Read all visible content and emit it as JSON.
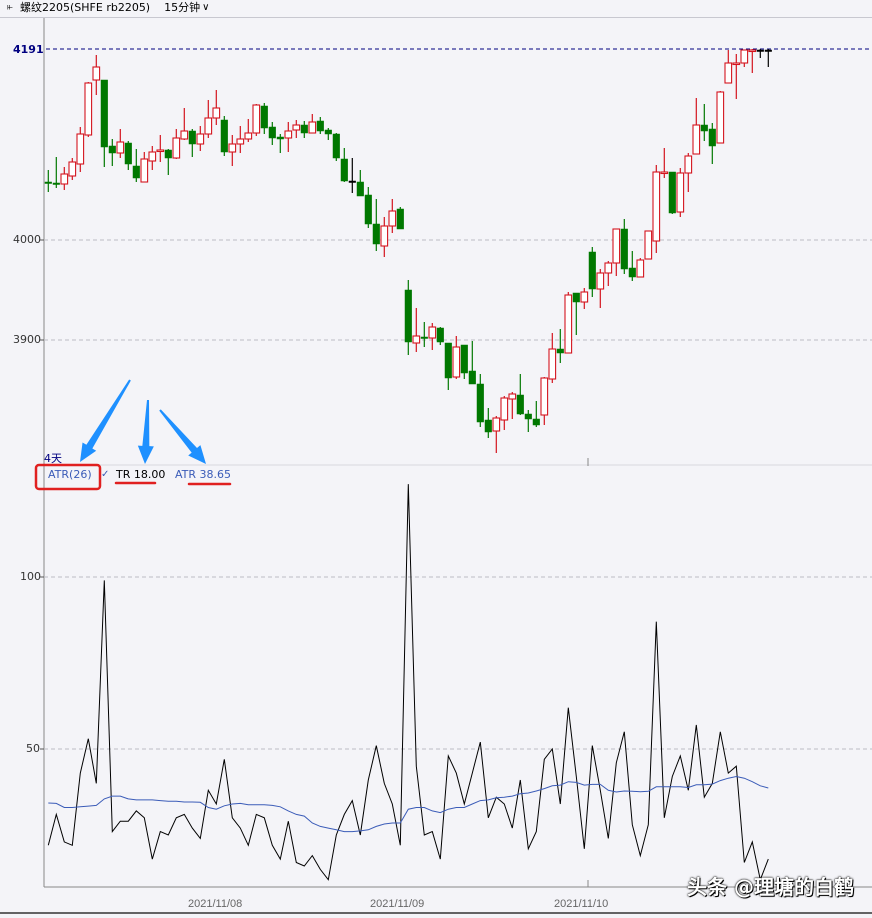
{
  "header": {
    "menu_icon": "link-icon",
    "instrument": "螺纹2205(SHFE rb2205)",
    "period": "15分钟",
    "period_dropdown_icon": "chevron-down-icon"
  },
  "colors": {
    "up": "#d4141e",
    "down": "#007800",
    "neutral": "#000000",
    "atr": "#3b5cb8",
    "tr": "#000000",
    "annotation_arrow": "#1e90ff",
    "annotation_box": "#e02020",
    "last_price_line": "#000080"
  },
  "price_panel": {
    "last_price_label": "4191",
    "y_ticks": [
      {
        "value": 4000,
        "label": "4000"
      },
      {
        "value": 3900,
        "label": "3900"
      }
    ],
    "span_label": "4天"
  },
  "indicator_panel": {
    "name": "ATR(26)",
    "check_icon": "checkmark-icon",
    "tr_label": "TR 18.00",
    "atr_label": "ATR 38.65",
    "y_ticks": [
      {
        "value": 100,
        "label": "100"
      },
      {
        "value": 50,
        "label": "50"
      }
    ]
  },
  "x_axis": {
    "labels": [
      "2021/11/08",
      "2021/11/09",
      "2021/11/10"
    ]
  },
  "watermark": "头条 @理塘的白鹤",
  "chart_data": [
    {
      "type": "candlestick",
      "title": "螺纹2205(SHFE rb2205) 15分钟",
      "fields": [
        "open",
        "high",
        "low",
        "close"
      ],
      "ylim": [
        3770,
        4200
      ],
      "last_price": 4191,
      "grid": true,
      "candles": [
        [
          4058,
          4070,
          4048,
          4057
        ],
        [
          4057,
          4083,
          4052,
          4056
        ],
        [
          4056,
          4073,
          4050,
          4066
        ],
        [
          4064,
          4082,
          4060,
          4078
        ],
        [
          4076,
          4113,
          4068,
          4106
        ],
        [
          4105,
          4158,
          4103,
          4157
        ],
        [
          4160,
          4185,
          4145,
          4173
        ],
        [
          4160,
          4160,
          4073,
          4093
        ],
        [
          4094,
          4101,
          4074,
          4087
        ],
        [
          4087,
          4111,
          4082,
          4098
        ],
        [
          4097,
          4099,
          4070,
          4076
        ],
        [
          4074,
          4091,
          4058,
          4062
        ],
        [
          4058,
          4088,
          4058,
          4081
        ],
        [
          4079,
          4094,
          4070,
          4088
        ],
        [
          4089,
          4105,
          4078,
          4090
        ],
        [
          4090,
          4091,
          4065,
          4082
        ],
        [
          4082,
          4111,
          4081,
          4102
        ],
        [
          4101,
          4132,
          4100,
          4109
        ],
        [
          4109,
          4111,
          4083,
          4096
        ],
        [
          4096,
          4114,
          4089,
          4106
        ],
        [
          4106,
          4140,
          4102,
          4122
        ],
        [
          4122,
          4150,
          4115,
          4132
        ],
        [
          4120,
          4124,
          4084,
          4088
        ],
        [
          4088,
          4105,
          4074,
          4096
        ],
        [
          4096,
          4114,
          4087,
          4101
        ],
        [
          4101,
          4121,
          4098,
          4107
        ],
        [
          4107,
          4136,
          4104,
          4135
        ],
        [
          4134,
          4137,
          4106,
          4112
        ],
        [
          4113,
          4118,
          4095,
          4102
        ],
        [
          4103,
          4106,
          4087,
          4101
        ],
        [
          4102,
          4118,
          4088,
          4109
        ],
        [
          4110,
          4120,
          4102,
          4115
        ],
        [
          4115,
          4119,
          4102,
          4107
        ],
        [
          4107,
          4126,
          4107,
          4118
        ],
        [
          4119,
          4123,
          4106,
          4109
        ],
        [
          4110,
          4112,
          4100,
          4106
        ],
        [
          4106,
          4107,
          4079,
          4082
        ],
        [
          4081,
          4092,
          4058,
          4059
        ],
        [
          4059,
          4082,
          4047,
          4059
        ],
        [
          4058,
          4070,
          4044,
          4044
        ],
        [
          4045,
          4053,
          4012,
          4016
        ],
        [
          4016,
          4041,
          3989,
          3996
        ],
        [
          3994,
          4023,
          3983,
          4014
        ],
        [
          4014,
          4041,
          4007,
          4029
        ],
        [
          4031,
          4033,
          4011,
          4011
        ],
        [
          3950,
          3960,
          3885,
          3898
        ],
        [
          3897,
          3932,
          3888,
          3904
        ],
        [
          3903,
          3918,
          3893,
          3902
        ],
        [
          3902,
          3917,
          3890,
          3913
        ],
        [
          3912,
          3913,
          3895,
          3898
        ],
        [
          3897,
          3897,
          3850,
          3862
        ],
        [
          3863,
          3904,
          3861,
          3893
        ],
        [
          3895,
          3895,
          3861,
          3867
        ],
        [
          3869,
          3899,
          3856,
          3856
        ],
        [
          3856,
          3866,
          3813,
          3818
        ],
        [
          3820,
          3832,
          3802,
          3808
        ],
        [
          3809,
          3824,
          3787,
          3822
        ],
        [
          3820,
          3844,
          3810,
          3842
        ],
        [
          3841,
          3848,
          3821,
          3846
        ],
        [
          3845,
          3866,
          3825,
          3826
        ],
        [
          3826,
          3830,
          3808,
          3821
        ],
        [
          3821,
          3839,
          3813,
          3815
        ],
        [
          3825,
          3863,
          3815,
          3862
        ],
        [
          3861,
          3907,
          3857,
          3891
        ],
        [
          3891,
          3911,
          3877,
          3887
        ],
        [
          3887,
          3948,
          3887,
          3945
        ],
        [
          3947,
          3947,
          3905,
          3938
        ],
        [
          3938,
          3952,
          3931,
          3948
        ],
        [
          3988,
          3993,
          3943,
          3951
        ],
        [
          3951,
          3971,
          3932,
          3967
        ],
        [
          3967,
          3979,
          3954,
          3977
        ],
        [
          3977,
          4011,
          3964,
          4011
        ],
        [
          4011,
          4021,
          3966,
          3971
        ],
        [
          3972,
          3989,
          3959,
          3963
        ],
        [
          3963,
          3982,
          3963,
          3980
        ],
        [
          3981,
          4009,
          3981,
          4009
        ],
        [
          3999,
          4075,
          3987,
          4068
        ],
        [
          4067,
          4092,
          4062,
          4068
        ],
        [
          4068,
          4068,
          4026,
          4027
        ],
        [
          4028,
          4072,
          4023,
          4067
        ],
        [
          4067,
          4087,
          4048,
          4084
        ],
        [
          4086,
          4142,
          4086,
          4115
        ],
        [
          4115,
          4136,
          4099,
          4109
        ],
        [
          4111,
          4117,
          4076,
          4094
        ],
        [
          4097,
          4149,
          4097,
          4148
        ],
        [
          4157,
          4190,
          4157,
          4177
        ],
        [
          4176,
          4186,
          4141,
          4177
        ],
        [
          4177,
          4190,
          4173,
          4190
        ],
        [
          4189,
          4191,
          4167,
          4190
        ],
        [
          4190,
          4191,
          4182,
          4190
        ],
        [
          4190,
          4191,
          4173,
          4190
        ]
      ],
      "neutral_candles": [
        39,
        90,
        91
      ]
    },
    {
      "type": "line",
      "title": "ATR(26)",
      "ylim": [
        0,
        127
      ],
      "grid": true,
      "series": [
        {
          "name": "TR",
          "values": [
            22,
            31,
            23,
            22,
            43,
            53,
            40,
            99,
            26,
            29,
            29,
            32,
            30,
            18,
            26,
            25,
            30,
            31,
            27,
            24,
            38,
            34,
            47,
            30,
            27,
            22,
            31,
            30,
            22,
            18,
            29,
            17,
            16,
            19,
            15,
            12,
            25,
            31,
            35,
            25,
            41,
            51,
            40,
            34,
            22,
            127,
            45,
            25,
            26,
            18,
            48,
            43,
            34,
            43,
            52,
            30,
            36,
            34,
            27,
            41,
            21,
            26,
            47,
            50,
            34,
            62,
            42,
            21,
            51,
            38,
            24,
            46,
            55,
            28,
            19,
            28,
            87,
            30,
            42,
            48,
            38,
            57,
            36,
            40,
            55,
            43,
            45,
            17,
            23,
            12,
            18
          ]
        },
        {
          "name": "ATR",
          "values": [
            34.3,
            34.2,
            33,
            33,
            33.2,
            33.4,
            33.6,
            35.5,
            36.3,
            36.3,
            35.5,
            35.2,
            35.2,
            35.2,
            35,
            34.8,
            34.8,
            34.6,
            34.6,
            34.5,
            33,
            32.5,
            33.5,
            34,
            34.2,
            33.8,
            33.8,
            33.8,
            33.6,
            33.2,
            32,
            31,
            30.5,
            28.5,
            27.5,
            27,
            26.5,
            26,
            26,
            26.2,
            26.5,
            27.5,
            28.2,
            28.5,
            28.5,
            32.5,
            33,
            33,
            32,
            31.5,
            32.5,
            33,
            33,
            34,
            35,
            35.2,
            35.8,
            36,
            36.3,
            37,
            37.2,
            37.8,
            38.5,
            39.3,
            39.5,
            40.5,
            40.3,
            39.5,
            39.7,
            39.7,
            38,
            37.5,
            37.8,
            37.7,
            37.6,
            37.7,
            39,
            39,
            39,
            39,
            38.8,
            39.6,
            39.6,
            39.8,
            40.8,
            41.5,
            42,
            41.5,
            40.5,
            39.3,
            38.65
          ]
        }
      ]
    }
  ]
}
